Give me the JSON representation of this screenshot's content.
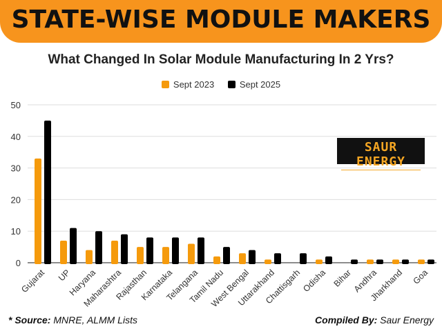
{
  "banner_title": "STATE-WISE MODULE MAKERS",
  "logo": {
    "main": "SAUR ENERGY",
    "sub": "INTERNATIONAL"
  },
  "footer": {
    "source_label": "* Source:",
    "source_text": " MNRE, ALMM Lists",
    "compiled_label": "Compiled By:",
    "compiled_text": " Saur Energy"
  },
  "colors": {
    "banner": "#f7941d",
    "sept_2023": "#f59a0c",
    "sept_2025": "#000000"
  },
  "chart_data": {
    "type": "bar",
    "title": "What Changed In Solar Module Manufacturing In 2 Yrs?",
    "categories": [
      "Gujarat",
      "UP",
      "Haryana",
      "Maharashtra",
      "Rajasthan",
      "Karnataka",
      "Telangana",
      "Tamil Nadu",
      "West Bengal",
      "Uttarakhand",
      "Chattisgarh",
      "Odisha",
      "Bihar",
      "Andhra",
      "Jharkhand",
      "Goa"
    ],
    "series": [
      {
        "name": "Sept 2023",
        "values": [
          33,
          7,
          4,
          7,
          5,
          5,
          6,
          2,
          3,
          1,
          0,
          1,
          0,
          1,
          1,
          1
        ]
      },
      {
        "name": "Sept 2025",
        "values": [
          45,
          11,
          10,
          9,
          8,
          8,
          8,
          5,
          4,
          3,
          3,
          2,
          1,
          1,
          1,
          1
        ]
      }
    ],
    "ylim": [
      0,
      50
    ],
    "yticks": [
      "0",
      "10",
      "20",
      "30",
      "40",
      "50"
    ],
    "grid": true,
    "legend": "top-center"
  }
}
